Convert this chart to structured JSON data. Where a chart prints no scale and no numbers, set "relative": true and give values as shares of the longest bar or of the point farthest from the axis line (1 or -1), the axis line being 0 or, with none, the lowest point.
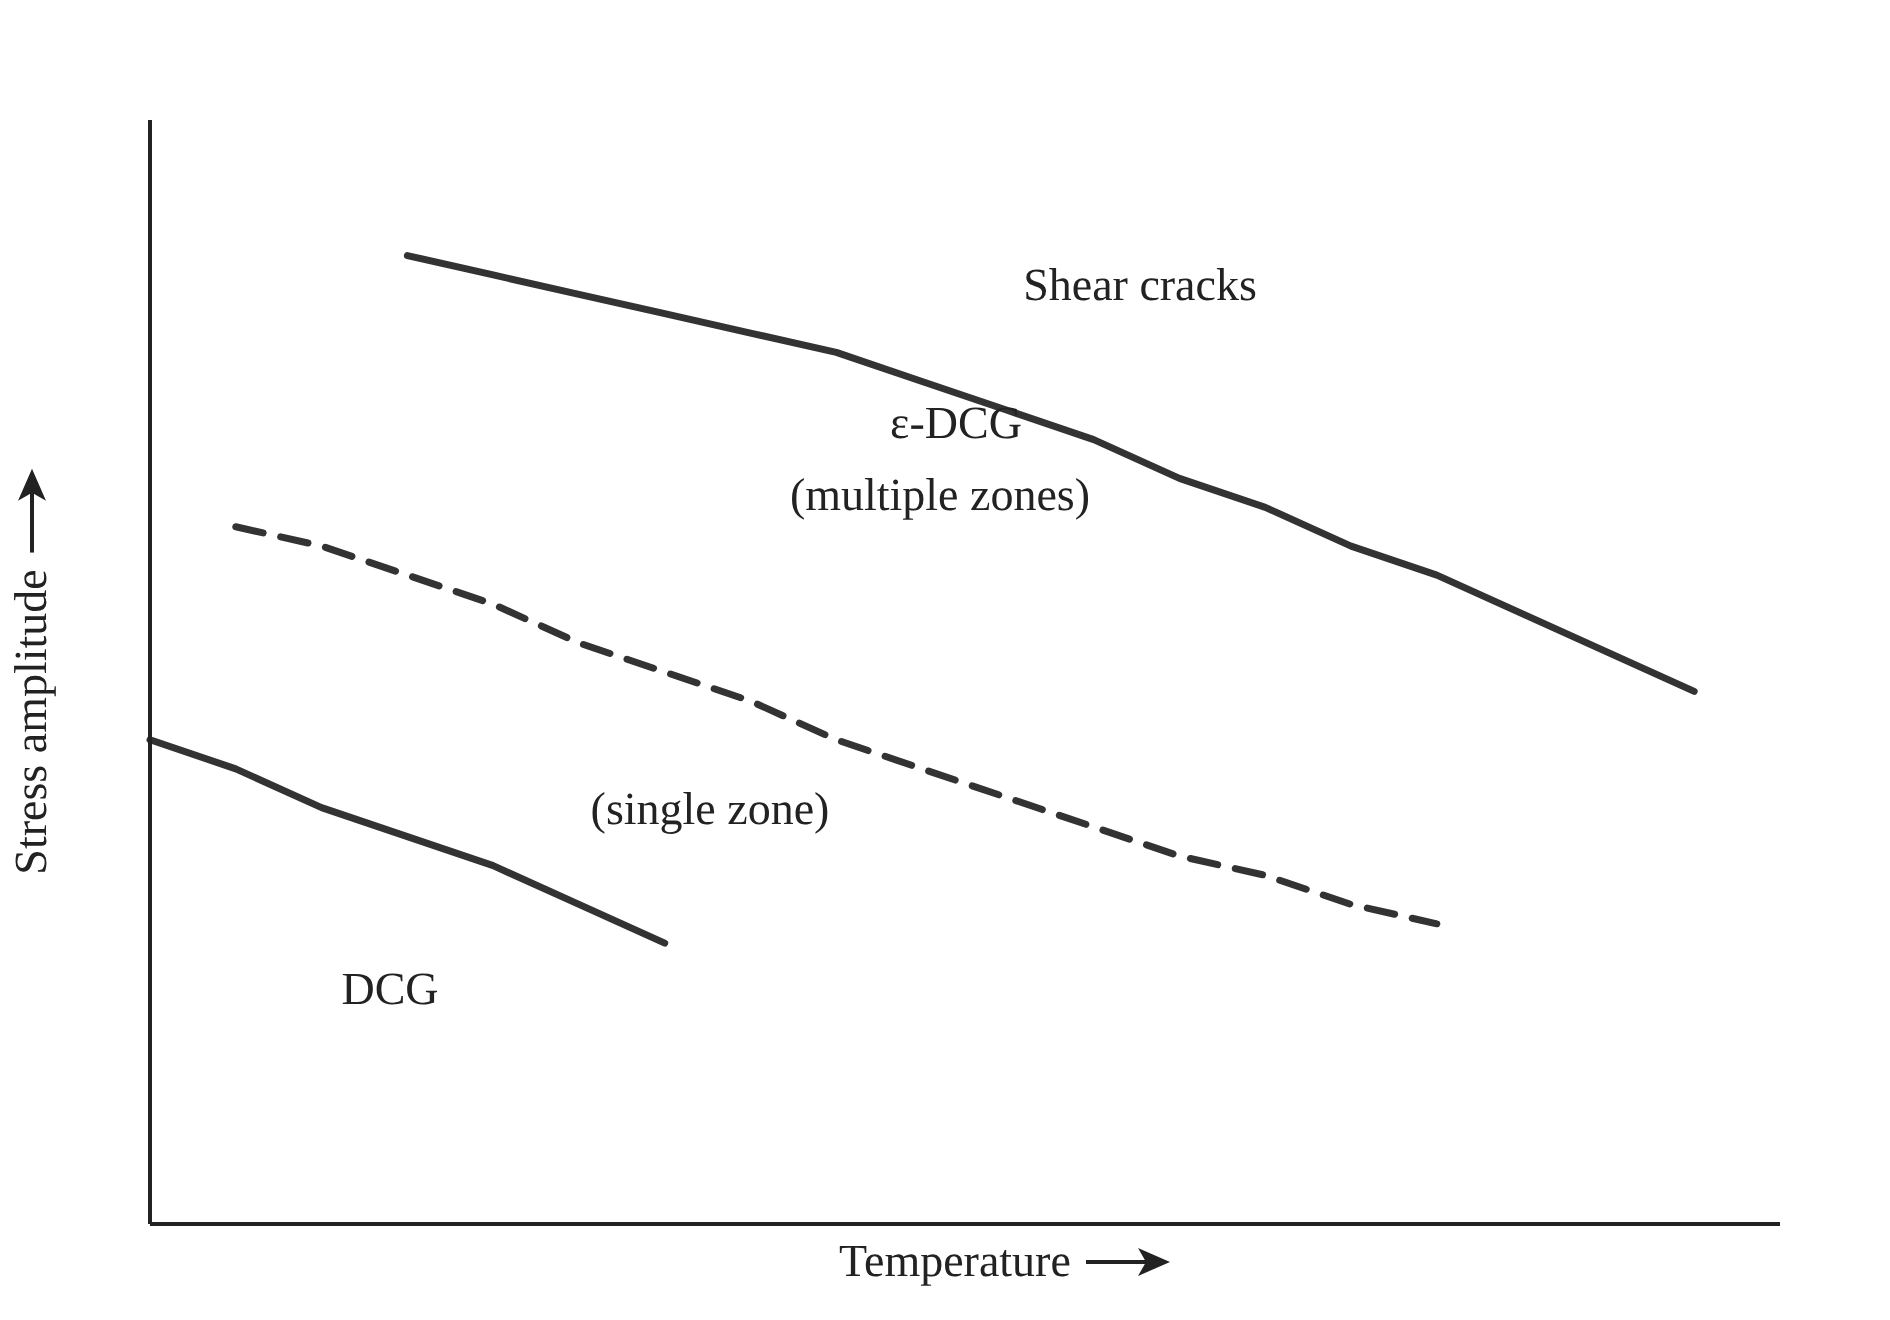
{
  "chart_data": {
    "type": "line",
    "relative": true,
    "xlabel": "Temperature",
    "ylabel": "Stress amplitude",
    "categories": [
      null,
      null,
      null,
      null,
      null,
      null,
      null,
      null,
      null,
      null,
      null,
      null,
      null,
      null,
      null,
      null,
      null,
      null,
      null,
      null
    ],
    "series": [
      {
        "color": "#333333",
        "line_style": "solid",
        "values": [
          null,
          null,
          null,
          1.0,
          0.98,
          0.96,
          0.94,
          0.92,
          0.9,
          0.87,
          0.84,
          0.81,
          0.77,
          0.74,
          0.7,
          0.67,
          0.63,
          0.59,
          0.55,
          null
        ]
      },
      {
        "color": "#333333",
        "line_style": "dashed",
        "values": [
          null,
          0.72,
          0.7,
          0.67,
          0.64,
          0.6,
          0.57,
          0.54,
          0.5,
          0.47,
          0.44,
          0.41,
          0.38,
          0.36,
          0.33,
          0.31,
          null,
          null,
          null,
          null
        ]
      },
      {
        "color": "#333333",
        "line_style": "solid",
        "values": [
          0.5,
          0.47,
          0.43,
          0.4,
          0.37,
          0.33,
          0.29,
          null,
          null,
          null,
          null,
          null,
          null,
          null,
          null,
          null,
          null,
          null,
          null,
          null
        ]
      }
    ],
    "annotations": [
      "Shear cracks",
      "ε-DCG",
      "(multiple zones)",
      "(single zone)",
      "DCG"
    ]
  }
}
